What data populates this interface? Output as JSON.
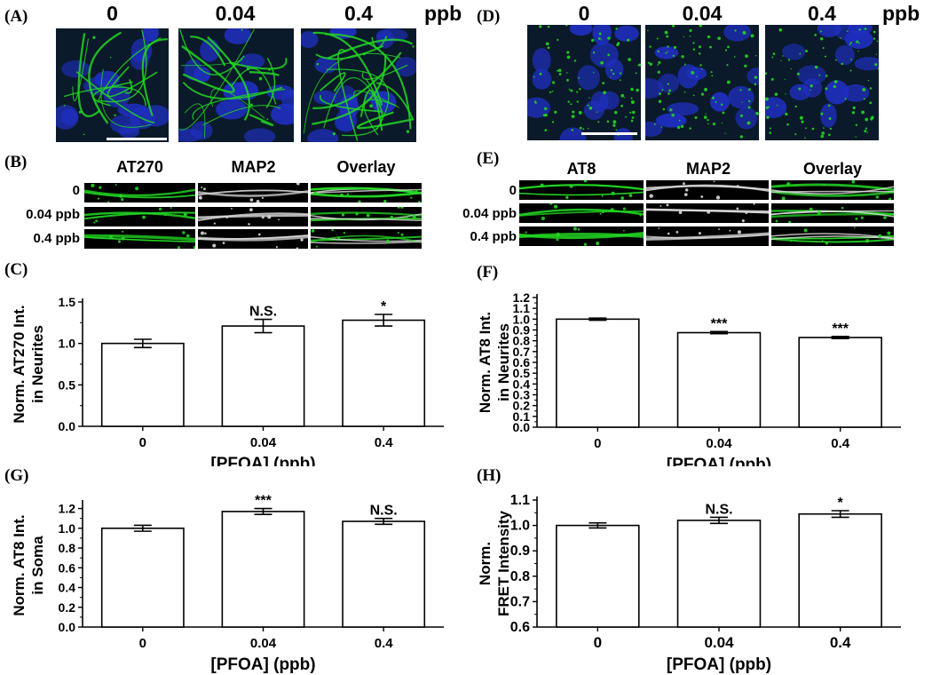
{
  "panel_labels": [
    "(A)",
    "(B)",
    "(C)",
    "(D)",
    "(E)",
    "(F)",
    "(G)",
    "(H)"
  ],
  "concentrations": [
    "0",
    "0.04",
    "0.4"
  ],
  "unit": "ppb",
  "panel_b": {
    "channels": [
      "AT270",
      "MAP2",
      "Overlay"
    ],
    "rows": [
      "0",
      "0.04 ppb",
      "0.4 ppb"
    ]
  },
  "panel_e": {
    "channels": [
      "AT8",
      "MAP2",
      "Overlay"
    ],
    "rows": [
      "0",
      "0.04 ppb",
      "0.4 ppb"
    ]
  },
  "colors": {
    "nucleus": "#1f2fbf",
    "fiber": "#22d822",
    "background": "#0a1a2a"
  },
  "chart_data": [
    {
      "panel": "(C)",
      "type": "bar",
      "categories": [
        "0",
        "0.04",
        "0.4"
      ],
      "values": [
        1.0,
        1.21,
        1.28
      ],
      "errors": [
        0.05,
        0.08,
        0.07
      ],
      "significance": [
        "",
        "N.S.",
        "*"
      ],
      "xlabel": "[PFOA] (ppb)",
      "ylabel": [
        "Norm. AT270 Int.",
        "in Neurites"
      ],
      "ylim": [
        0,
        1.5
      ],
      "yticks": [
        "0.0",
        "0.5",
        "1.0",
        "1.5"
      ],
      "ytick_values": [
        0,
        0.5,
        1.0,
        1.5
      ]
    },
    {
      "panel": "(F)",
      "type": "bar",
      "categories": [
        "0",
        "0.04",
        "0.4"
      ],
      "values": [
        1.0,
        0.875,
        0.83
      ],
      "errors": [
        0.01,
        0.01,
        0.01
      ],
      "significance": [
        "",
        "***",
        "***"
      ],
      "xlabel": "[PFOA] (ppb)",
      "ylabel": [
        "Norm. AT8 Int.",
        "in Neurites"
      ],
      "ylim": [
        0,
        1.2
      ],
      "yticks": [
        "0.0",
        "0.1",
        "0.2",
        "0.3",
        "0.4",
        "0.5",
        "0.6",
        "0.7",
        "0.8",
        "0.9",
        "1.0",
        "1.1",
        "1.2"
      ],
      "ytick_values": [
        0,
        0.1,
        0.2,
        0.3,
        0.4,
        0.5,
        0.6,
        0.7,
        0.8,
        0.9,
        1.0,
        1.1,
        1.2
      ]
    },
    {
      "panel": "(G)",
      "type": "bar",
      "categories": [
        "0",
        "0.04",
        "0.4"
      ],
      "values": [
        1.0,
        1.17,
        1.07
      ],
      "errors": [
        0.03,
        0.03,
        0.03
      ],
      "significance": [
        "",
        "***",
        "N.S."
      ],
      "xlabel": "[PFOA] (ppb)",
      "ylabel": [
        "Norm. AT8 Int.",
        "in Soma"
      ],
      "ylim": [
        0,
        1.25
      ],
      "yticks": [
        "0.0",
        "0.2",
        "0.4",
        "0.6",
        "0.8",
        "1.0",
        "1.2"
      ],
      "ytick_values": [
        0,
        0.2,
        0.4,
        0.6,
        0.8,
        1.0,
        1.2
      ]
    },
    {
      "panel": "(H)",
      "type": "bar",
      "categories": [
        "0",
        "0.04",
        "0.4"
      ],
      "values": [
        1.0,
        1.02,
        1.045
      ],
      "errors": [
        0.01,
        0.012,
        0.013
      ],
      "significance": [
        "",
        "N.S.",
        "*"
      ],
      "xlabel": "[PFOA] (ppb)",
      "ylabel": [
        "Norm.",
        "FRET Intensity"
      ],
      "ylim": [
        0.6,
        1.1
      ],
      "yticks": [
        "0.6",
        "0.7",
        "0.8",
        "0.9",
        "1.0",
        "1.1"
      ],
      "ytick_values": [
        0.6,
        0.7,
        0.8,
        0.9,
        1.0,
        1.1
      ]
    }
  ]
}
